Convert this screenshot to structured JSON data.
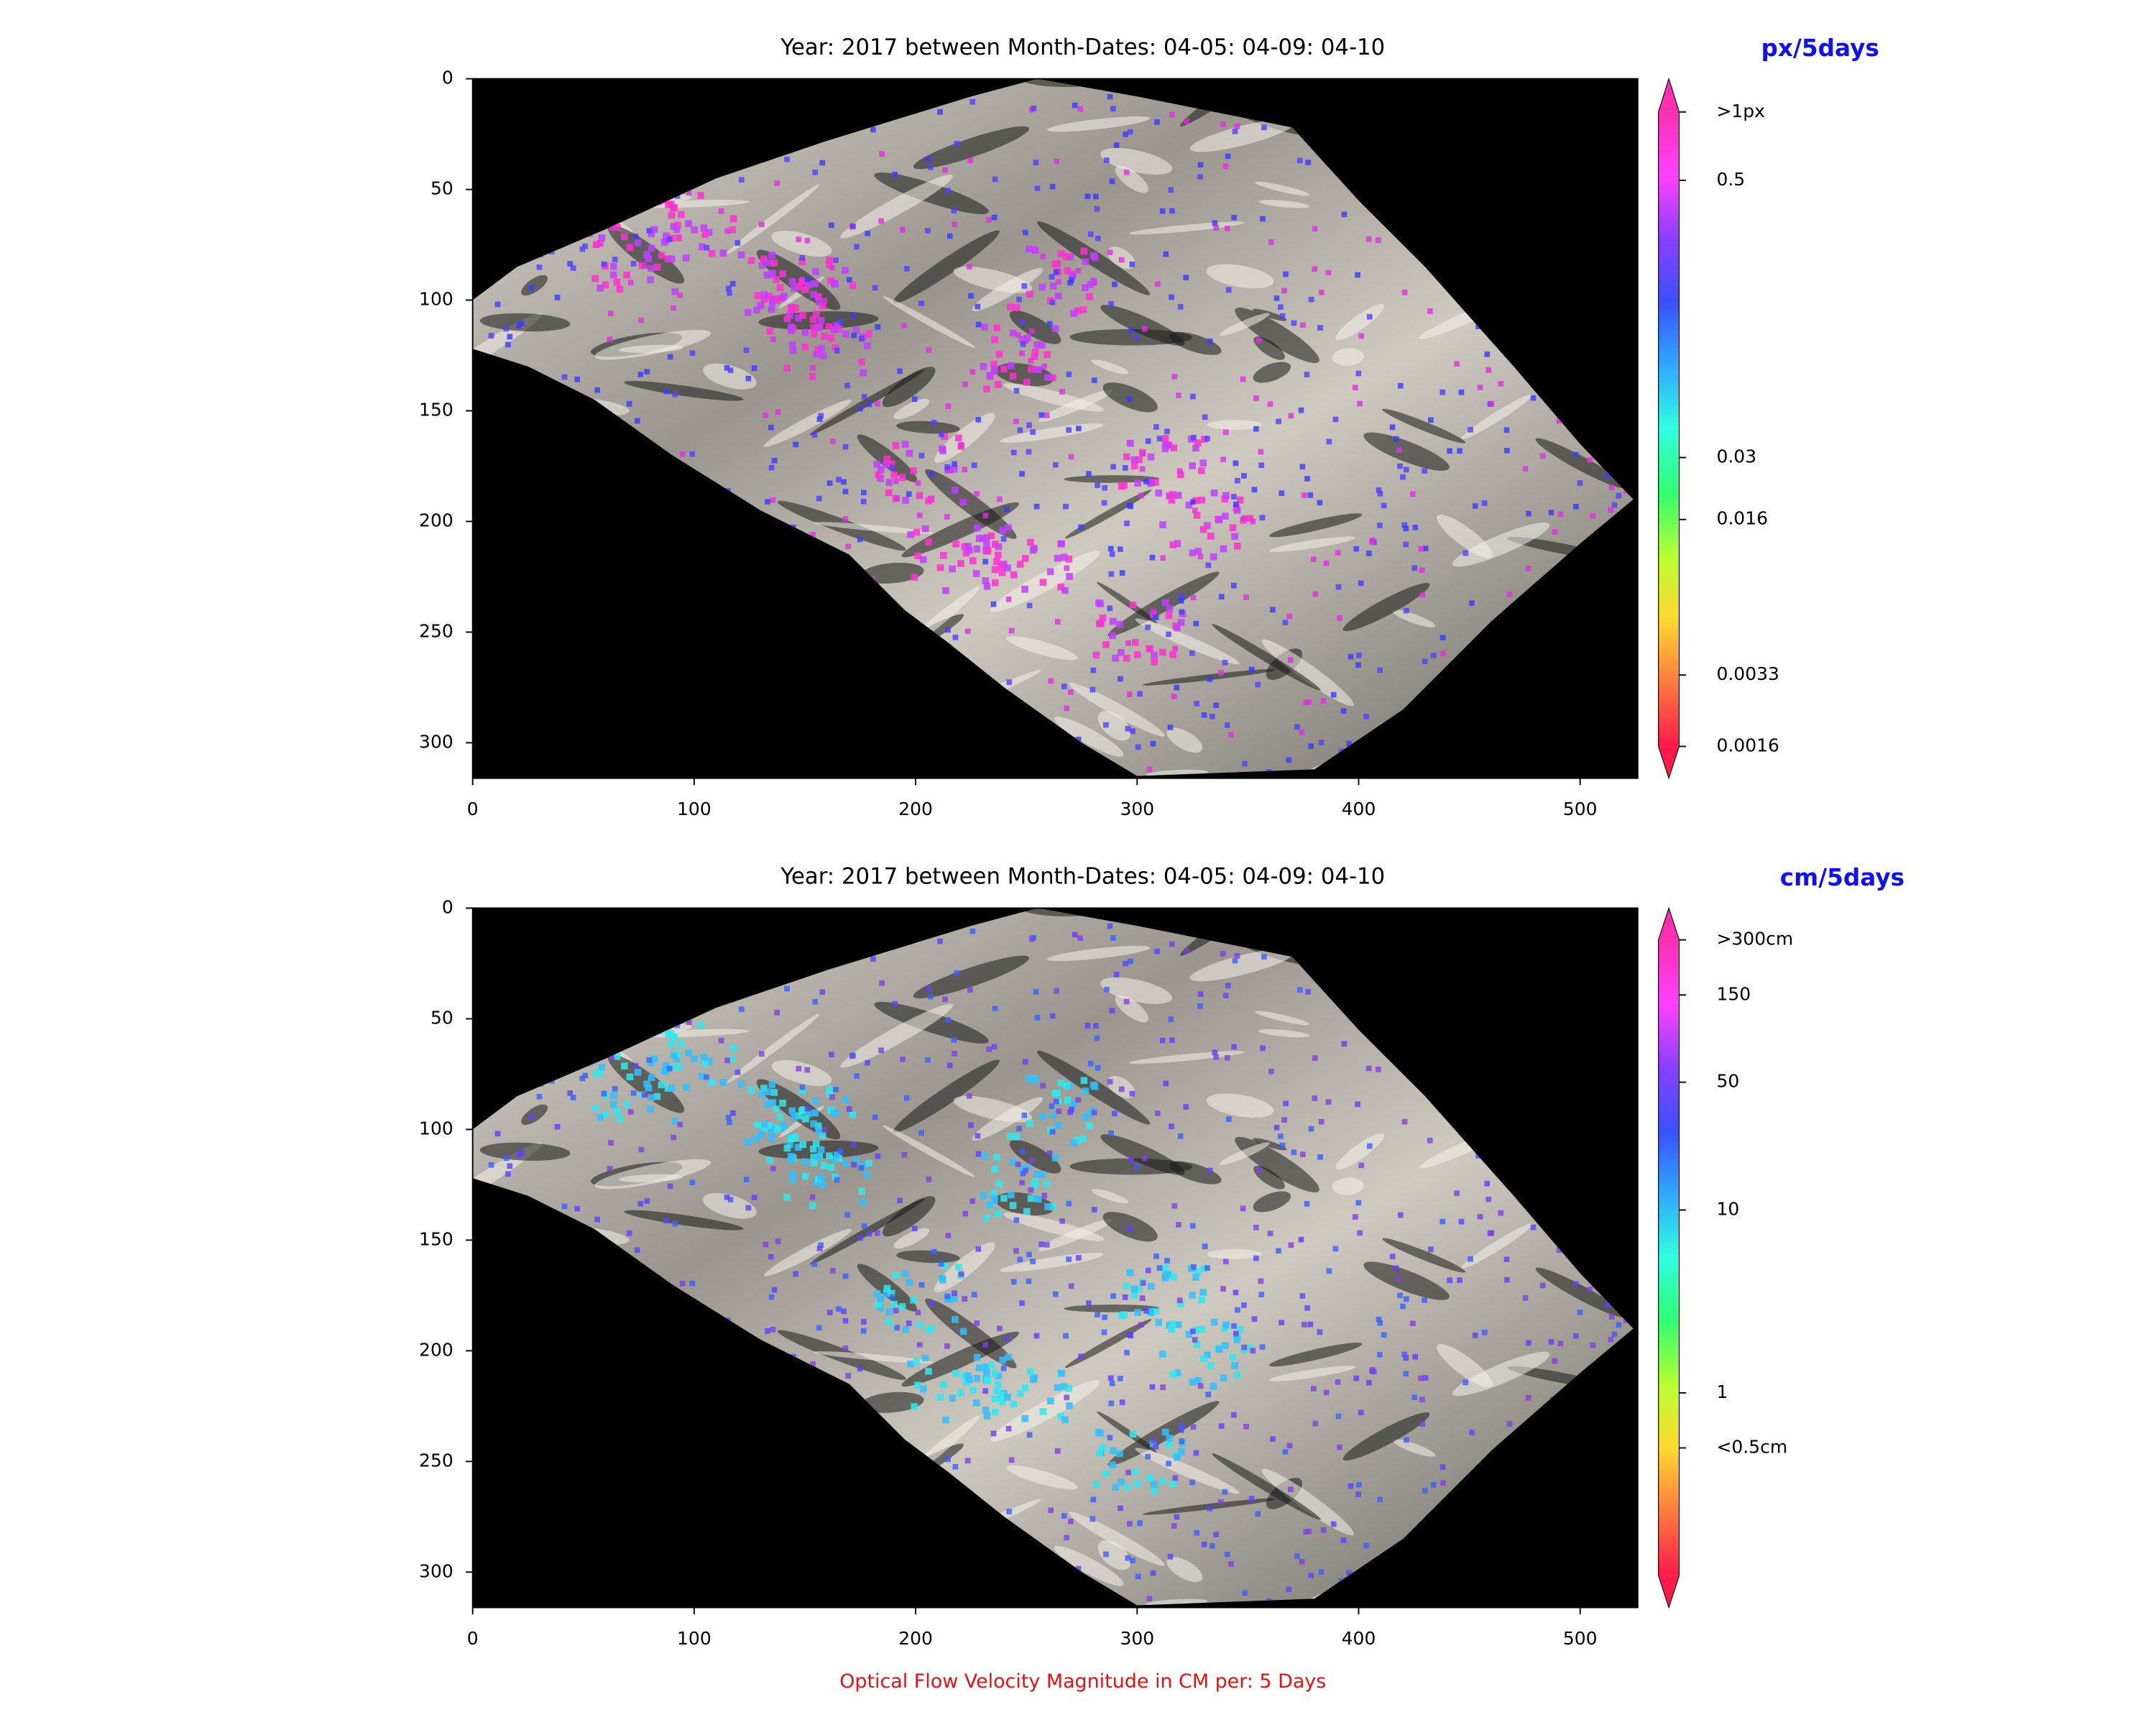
{
  "chart_data": [
    {
      "type": "image",
      "title": "Year: 2017 between Month-Dates: 04-05: 04-09: 04-10",
      "xlim": [
        0,
        526
      ],
      "ylim": [
        316,
        0
      ],
      "xticks": [
        0,
        100,
        200,
        300,
        400,
        500
      ],
      "yticks": [
        0,
        50,
        100,
        150,
        200,
        250,
        300
      ],
      "overlay_colors": [
        "#ff30d0",
        "#c040ff",
        "#5040ff",
        "#3a3aff",
        "#e030e0"
      ],
      "colorbar": {
        "label": "px/5days",
        "scale": "log",
        "lim": [
          0.0016,
          1
        ],
        "colormap": [
          "#ff1a4a",
          "#ff7a40",
          "#ffd830",
          "#b8ff30",
          "#30ff70",
          "#30ffe0",
          "#30a8ff",
          "#3a50ff",
          "#8a40ff",
          "#ff40ff",
          "#ff30b0"
        ],
        "ticks": [
          {
            "value": 1,
            "label": ">1px"
          },
          0.5,
          0.03,
          0.016,
          0.0033,
          0.0016
        ]
      }
    },
    {
      "type": "image",
      "title": "Year: 2017 between Month-Dates: 04-05: 04-09: 04-10",
      "xlabel": "Optical Flow Velocity Magnitude in CM per: 5 Days",
      "xlim": [
        0,
        526
      ],
      "ylim": [
        316,
        0
      ],
      "xticks": [
        0,
        100,
        200,
        300,
        400,
        500
      ],
      "yticks": [
        0,
        50,
        100,
        150,
        200,
        250,
        300
      ],
      "overlay_colors": [
        "#30e8f0",
        "#30c0ff",
        "#3a60ff",
        "#6040ff",
        "#8040e0"
      ],
      "colorbar": {
        "label": "cm/5days",
        "scale": "log",
        "lim": [
          0.1,
          300
        ],
        "colormap": [
          "#ff1a4a",
          "#ff7a40",
          "#ffd830",
          "#b8ff30",
          "#30ff70",
          "#30ffe0",
          "#30a8ff",
          "#3a50ff",
          "#8a40ff",
          "#ff40ff",
          "#ff30b0"
        ],
        "ticks": [
          {
            "value": 300,
            "label": ">300cm"
          },
          150,
          50,
          10,
          1,
          {
            "value": 0.5,
            "label": "<0.5cm"
          }
        ]
      }
    }
  ]
}
